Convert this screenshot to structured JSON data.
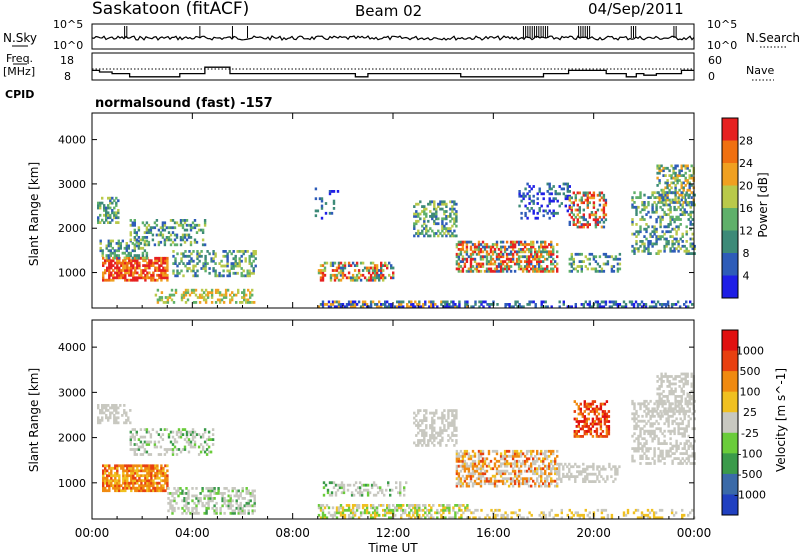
{
  "header": {
    "station": "Saskatoon (fitACF)",
    "beam": "Beam 02",
    "date": "04/Sep/2011"
  },
  "top_panels": {
    "nsky_label": "N.Sky",
    "nsky_tick_top": "10^5",
    "nsky_tick_bottom": "10^0",
    "nsearch_label": "N.Search",
    "nsearch_tick_top": "10^5",
    "nsearch_tick_bottom": "10^0",
    "freq_label_line1": "Freq.",
    "freq_label_line2": "[MHz]",
    "freq_ticks": [
      "18",
      "8"
    ],
    "nave_label": "Nave",
    "nave_ticks": [
      "60",
      "0"
    ],
    "cpid_label": "CPID",
    "cpid_text": "normalsound (fast) -157",
    "freq_series": [
      [
        0.0,
        14
      ],
      [
        0.3,
        13
      ],
      [
        0.8,
        12
      ],
      [
        1.2,
        12
      ],
      [
        1.5,
        10
      ],
      [
        3.0,
        10
      ],
      [
        3.5,
        12
      ],
      [
        4.5,
        16
      ],
      [
        5.5,
        12
      ],
      [
        6.5,
        12
      ],
      [
        9.0,
        12
      ],
      [
        10.0,
        12
      ],
      [
        10.5,
        10
      ],
      [
        11.0,
        12
      ],
      [
        14.0,
        12
      ],
      [
        14.7,
        10
      ],
      [
        16.5,
        10
      ],
      [
        17.5,
        10
      ],
      [
        18.0,
        12
      ],
      [
        19.0,
        14
      ],
      [
        20.5,
        12
      ],
      [
        21.3,
        10
      ],
      [
        21.7,
        12
      ],
      [
        22.0,
        11
      ],
      [
        22.5,
        12
      ],
      [
        23.5,
        14
      ],
      [
        24.0,
        14
      ]
    ]
  },
  "chart_data": [
    {
      "type": "heatmap",
      "panel": "power",
      "x_start": "00:00",
      "x_end": "00:00",
      "ylabel": "Slant Range [km]",
      "yticks": [
        "1000",
        "2000",
        "3000",
        "4000"
      ],
      "ylim": [
        200,
        4600
      ],
      "colorbar_label": "Power [dB]",
      "colorbar_ticks": [
        "4",
        "8",
        "12",
        "16",
        "20",
        "24",
        "28"
      ],
      "colorbar_colors": [
        "#1f1fe6",
        "#2e5cb8",
        "#3d8a78",
        "#5fb06a",
        "#b9c94a",
        "#f0a020",
        "#f07010",
        "#e62020"
      ],
      "data_gap_hours": [
        6.6,
        9.0
      ]
    },
    {
      "type": "heatmap",
      "panel": "velocity",
      "x_start": "00:00",
      "x_end": "00:00",
      "ylabel": "Slant Range [km]",
      "yticks": [
        "1000",
        "2000",
        "3000",
        "4000"
      ],
      "ylim": [
        200,
        4600
      ],
      "colorbar_label": "Velocity [m s^-1]",
      "colorbar_ticks": [
        "1000",
        "500",
        "100",
        "25",
        "-25",
        "-100",
        "-500",
        "-1000"
      ],
      "colorbar_colors": [
        "#2040c0",
        "#3a6aa8",
        "#3a9a4a",
        "#6acc3a",
        "#c8c8c0",
        "#f0c020",
        "#f08a10",
        "#e84010",
        "#e01010"
      ],
      "data_gap_hours": [
        6.6,
        9.0
      ]
    }
  ],
  "x_axis": {
    "ticks": [
      "00:00",
      "04:00",
      "08:00",
      "12:00",
      "16:00",
      "20:00",
      "00:00"
    ],
    "label": "Time UT"
  }
}
